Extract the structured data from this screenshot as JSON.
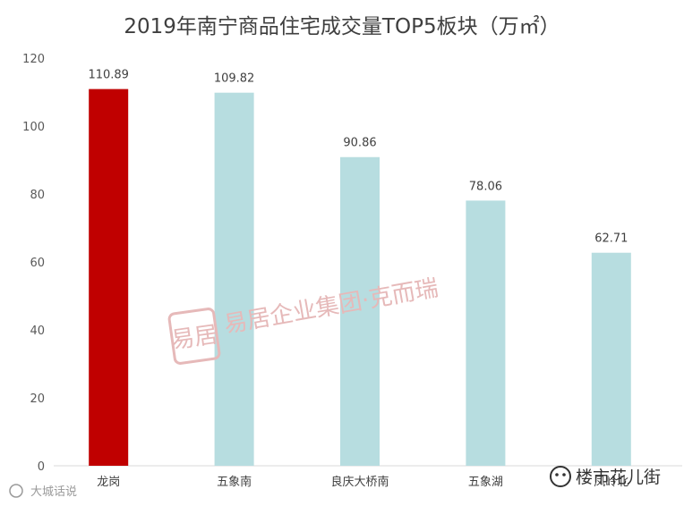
{
  "chart_data": {
    "type": "bar",
    "title": "2019年南宁商品住宅成交量TOP5板块（万㎡）",
    "categories": [
      "龙岗",
      "五象南",
      "良庆大桥南",
      "五象湖",
      "凤岭北"
    ],
    "values": [
      110.89,
      109.82,
      90.86,
      78.06,
      62.71
    ],
    "data_labels": [
      "110.89",
      "109.82",
      "90.86",
      "78.06",
      "62.71"
    ],
    "ylim": [
      0,
      120
    ],
    "yticks": [
      0,
      20,
      40,
      60,
      80,
      100,
      120
    ],
    "grid": false,
    "colors": {
      "highlight": "#c00000",
      "default": "#b7dde0",
      "highlight_index": 0
    }
  },
  "watermarks": {
    "center": "易居企业集团·克而瑞",
    "seal": "易居",
    "bottom_left": "大城话说",
    "bottom_right": "楼市花儿街"
  }
}
